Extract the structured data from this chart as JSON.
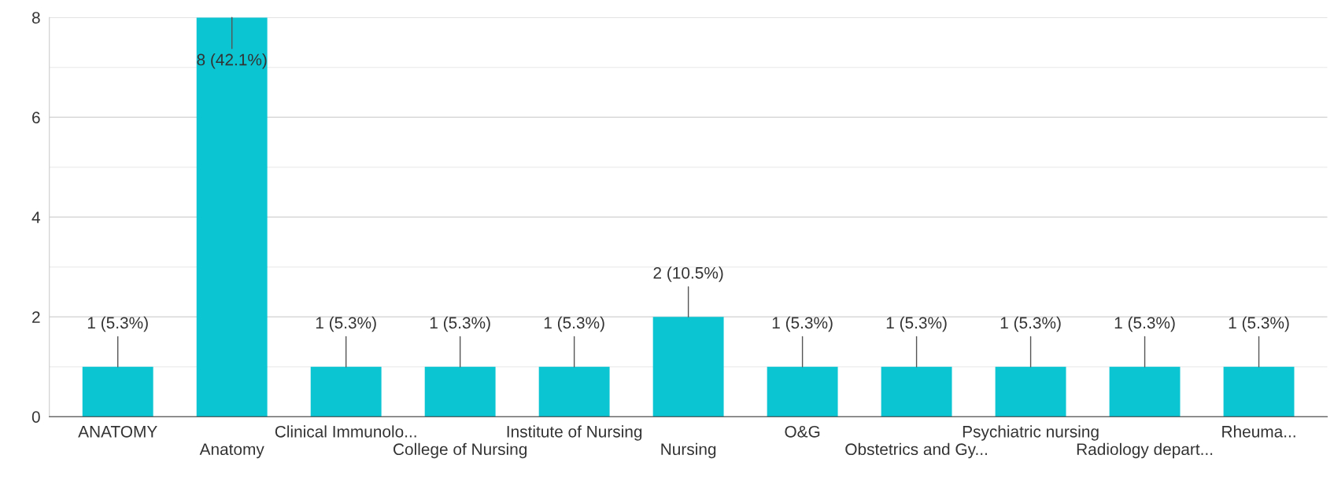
{
  "chart_data": {
    "type": "bar",
    "categories": [
      "ANATOMY",
      "Anatomy",
      "Clinical Immunolo...",
      "College of Nursing",
      "Institute of Nursing",
      "Nursing",
      "O&G",
      "Obstetrics and Gy...",
      "Psychiatric nursing",
      "Radiology depart...",
      "Rheuma..."
    ],
    "values": [
      1,
      8,
      1,
      1,
      1,
      2,
      1,
      1,
      1,
      1,
      1
    ],
    "value_labels": [
      "1 (5.3%)",
      "8 (42.1%)",
      "1 (5.3%)",
      "1 (5.3%)",
      "1 (5.3%)",
      "2 (10.5%)",
      "1 (5.3%)",
      "1 (5.3%)",
      "1 (5.3%)",
      "1 (5.3%)",
      "1 (5.3%)"
    ],
    "color": "#0bc5d3",
    "ylim": [
      0,
      8
    ],
    "yticks": [
      0,
      {
        "value": 1,
        "label": null
      },
      2,
      {
        "value": 3,
        "label": null
      },
      4,
      {
        "value": 5,
        "label": null
      },
      6,
      {
        "value": 7,
        "label": null
      },
      8
    ],
    "grid": "y"
  }
}
